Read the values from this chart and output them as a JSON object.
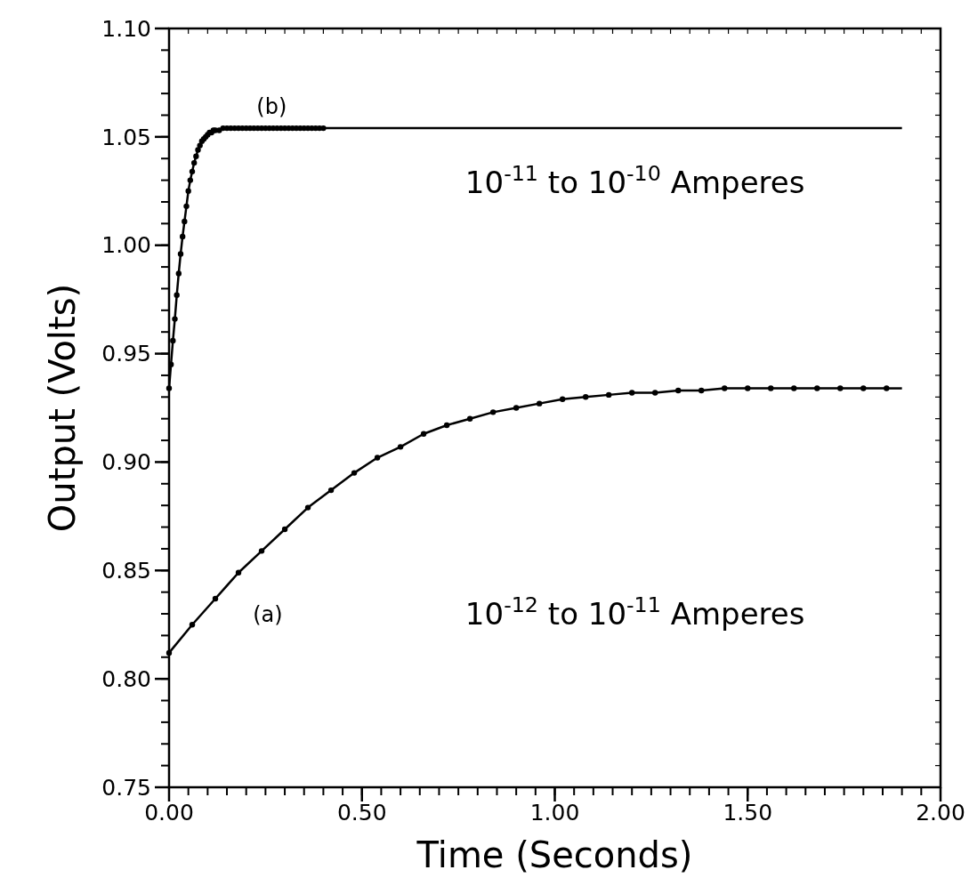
{
  "chart_data": {
    "type": "line",
    "xlabel": "Time  (Seconds)",
    "ylabel": "Output  (Volts)",
    "xlim": [
      0,
      2
    ],
    "ylim": [
      0.75,
      1.1
    ],
    "xticks": [
      {
        "value": 0,
        "label": "0.00"
      },
      {
        "value": 0.5,
        "label": "0.50"
      },
      {
        "value": 1,
        "label": "1.00"
      },
      {
        "value": 1.5,
        "label": "1.50"
      },
      {
        "value": 2,
        "label": "2.00"
      }
    ],
    "yticks": [
      {
        "value": 0.75,
        "label": "0.75"
      },
      {
        "value": 0.8,
        "label": "0.80"
      },
      {
        "value": 0.85,
        "label": "0.85"
      },
      {
        "value": 0.9,
        "label": "0.90"
      },
      {
        "value": 0.95,
        "label": "0.95"
      },
      {
        "value": 1.0,
        "label": "1.00"
      },
      {
        "value": 1.05,
        "label": "1.05"
      },
      {
        "value": 1.1,
        "label": "1.10"
      }
    ],
    "grid": false,
    "marker": "circle",
    "line_style": "solid",
    "series": [
      {
        "color": "#000000",
        "x": [
          0,
          0.06,
          0.12,
          0.18,
          0.24,
          0.3,
          0.36,
          0.42,
          0.48,
          0.54,
          0.6,
          0.66,
          0.72,
          0.78,
          0.84,
          0.9,
          0.96,
          1.02,
          1.08,
          1.14,
          1.2,
          1.26,
          1.32,
          1.38,
          1.44,
          1.5,
          1.56,
          1.62,
          1.68,
          1.74,
          1.8,
          1.86
        ],
        "values": [
          0.812,
          0.825,
          0.837,
          0.849,
          0.859,
          0.869,
          0.879,
          0.887,
          0.895,
          0.902,
          0.907,
          0.913,
          0.917,
          0.92,
          0.923,
          0.925,
          0.927,
          0.929,
          0.93,
          0.931,
          0.932,
          0.932,
          0.933,
          0.933,
          0.934,
          0.934,
          0.934,
          0.934,
          0.934,
          0.934,
          0.934,
          0.934
        ]
      },
      {
        "color": "#000000",
        "marker": "none",
        "x": [
          1.86,
          1.9
        ],
        "values": [
          0.934,
          0.934
        ]
      },
      {
        "color": "#000000",
        "x": [
          0,
          0.005,
          0.01,
          0.015,
          0.02,
          0.025,
          0.03,
          0.035,
          0.04,
          0.045,
          0.05,
          0.055,
          0.06,
          0.065,
          0.07,
          0.075,
          0.08,
          0.085,
          0.09,
          0.095,
          0.1,
          0.105,
          0.11,
          0.115,
          0.12,
          0.13,
          0.14,
          0.15,
          0.16,
          0.17,
          0.18,
          0.19,
          0.2,
          0.21,
          0.22,
          0.23,
          0.24,
          0.25,
          0.26,
          0.27,
          0.28,
          0.29,
          0.3,
          0.31,
          0.32,
          0.33,
          0.34,
          0.35,
          0.36,
          0.37,
          0.38,
          0.39,
          0.4
        ],
        "values": [
          0.934,
          0.945,
          0.956,
          0.966,
          0.977,
          0.987,
          0.996,
          1.004,
          1.011,
          1.018,
          1.025,
          1.03,
          1.034,
          1.038,
          1.041,
          1.044,
          1.046,
          1.048,
          1.049,
          1.05,
          1.051,
          1.052,
          1.052,
          1.053,
          1.053,
          1.053,
          1.054,
          1.054,
          1.054,
          1.054,
          1.054,
          1.054,
          1.054,
          1.054,
          1.054,
          1.054,
          1.054,
          1.054,
          1.054,
          1.054,
          1.054,
          1.054,
          1.054,
          1.054,
          1.054,
          1.054,
          1.054,
          1.054,
          1.054,
          1.054,
          1.054,
          1.054,
          1.054
        ]
      },
      {
        "color": "#000000",
        "marker": "none",
        "x": [
          0.4,
          1.9
        ],
        "values": [
          1.054,
          1.054
        ]
      }
    ],
    "annotations": [
      "(b)",
      "10$^{-11}$ to 10$^{-10}$ Amperes",
      "(a)",
      "10$^{-12}$ to 10$^{-11}$ Amperes"
    ]
  }
}
